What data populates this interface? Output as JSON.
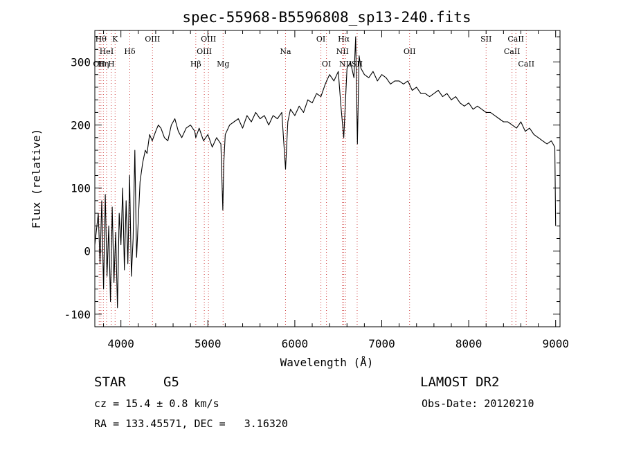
{
  "chart_data": {
    "type": "line",
    "title": "spec-55968-B5596808_sp13-240.fits",
    "xlabel": "Wavelength (Å)",
    "ylabel": "Flux (relative)",
    "xlim": [
      3700,
      9050
    ],
    "ylim": [
      -120,
      350
    ],
    "x_ticks": [
      4000,
      5000,
      6000,
      7000,
      8000,
      9000
    ],
    "y_ticks": [
      -100,
      0,
      100,
      200,
      300
    ],
    "grid": false,
    "series": [
      {
        "color": "#000000",
        "x": [
          3700,
          3740,
          3760,
          3780,
          3800,
          3820,
          3840,
          3860,
          3880,
          3900,
          3920,
          3940,
          3960,
          3980,
          4000,
          4020,
          4040,
          4060,
          4080,
          4100,
          4120,
          4140,
          4160,
          4180,
          4200,
          4220,
          4250,
          4280,
          4300,
          4330,
          4360,
          4400,
          4430,
          4460,
          4500,
          4540,
          4580,
          4620,
          4660,
          4700,
          4750,
          4800,
          4850,
          4861,
          4900,
          4950,
          5000,
          5050,
          5100,
          5150,
          5172,
          5183,
          5200,
          5250,
          5300,
          5350,
          5400,
          5450,
          5500,
          5550,
          5600,
          5650,
          5700,
          5750,
          5800,
          5850,
          5893,
          5920,
          5950,
          6000,
          6050,
          6100,
          6150,
          6200,
          6250,
          6300,
          6350,
          6400,
          6450,
          6500,
          6530,
          6563,
          6600,
          6640,
          6680,
          6700,
          6720,
          6740,
          6760,
          6800,
          6850,
          6900,
          6950,
          7000,
          7050,
          7100,
          7150,
          7200,
          7250,
          7300,
          7350,
          7400,
          7450,
          7500,
          7550,
          7600,
          7650,
          7700,
          7750,
          7800,
          7850,
          7900,
          7950,
          8000,
          8050,
          8100,
          8150,
          8200,
          8250,
          8300,
          8350,
          8400,
          8450,
          8500,
          8550,
          8600,
          8650,
          8700,
          8750,
          8800,
          8850,
          8900,
          8950,
          8990,
          9000
        ],
        "y": [
          10,
          60,
          -20,
          80,
          -60,
          90,
          -40,
          40,
          -80,
          70,
          -50,
          30,
          -90,
          60,
          10,
          100,
          -30,
          80,
          -20,
          120,
          -40,
          20,
          160,
          -10,
          50,
          110,
          140,
          160,
          155,
          185,
          175,
          190,
          200,
          195,
          180,
          175,
          200,
          210,
          190,
          180,
          195,
          200,
          190,
          180,
          195,
          175,
          185,
          165,
          180,
          170,
          65,
          140,
          185,
          200,
          205,
          210,
          195,
          215,
          205,
          220,
          210,
          215,
          200,
          215,
          210,
          220,
          130,
          205,
          225,
          215,
          230,
          220,
          240,
          235,
          250,
          245,
          265,
          280,
          270,
          285,
          230,
          180,
          290,
          300,
          275,
          340,
          170,
          310,
          290,
          280,
          275,
          285,
          270,
          280,
          275,
          265,
          270,
          270,
          265,
          270,
          255,
          260,
          250,
          250,
          245,
          250,
          255,
          245,
          250,
          240,
          245,
          235,
          230,
          235,
          225,
          230,
          225,
          220,
          220,
          215,
          210,
          205,
          205,
          200,
          195,
          205,
          190,
          195,
          185,
          180,
          175,
          170,
          175,
          165,
          40
        ]
      }
    ],
    "line_markers": [
      {
        "wave": 3750,
        "label": "OII",
        "row": 2
      },
      {
        "wave": 3770,
        "label": "Hθ",
        "row": 0
      },
      {
        "wave": 3798,
        "label": "Hη",
        "row": 2
      },
      {
        "wave": 3835,
        "label": "HeI",
        "row": 1
      },
      {
        "wave": 3889,
        "label": "H",
        "row": 2
      },
      {
        "wave": 3933,
        "label": "K",
        "row": 0
      },
      {
        "wave": 4102,
        "label": "Hδ",
        "row": 1
      },
      {
        "wave": 4363,
        "label": "OIII",
        "row": 0
      },
      {
        "wave": 4861,
        "label": "Hβ",
        "row": 2
      },
      {
        "wave": 4959,
        "label": "OIII",
        "row": 1
      },
      {
        "wave": 5007,
        "label": "OIII",
        "row": 0
      },
      {
        "wave": 5175,
        "label": "Mg",
        "row": 2
      },
      {
        "wave": 5893,
        "label": "Na",
        "row": 1
      },
      {
        "wave": 6300,
        "label": "OI",
        "row": 0
      },
      {
        "wave": 6364,
        "label": "OI",
        "row": 2
      },
      {
        "wave": 6548,
        "label": "NII",
        "row": 1
      },
      {
        "wave": 6563,
        "label": "Hα",
        "row": 0
      },
      {
        "wave": 6583,
        "label": "NII",
        "row": 2
      },
      {
        "wave": 6717,
        "label": "SII",
        "row": 2
      },
      {
        "wave": 7320,
        "label": "OII",
        "row": 1
      },
      {
        "wave": 8200,
        "label": "SII",
        "row": 0
      },
      {
        "wave": 8498,
        "label": "CaII",
        "row": 1
      },
      {
        "wave": 8542,
        "label": "CaII",
        "row": 0
      },
      {
        "wave": 8662,
        "label": "CaII",
        "row": 2
      }
    ]
  },
  "info": {
    "class_label": "STAR",
    "subclass": "G5",
    "survey": "LAMOST DR2",
    "redshift": "cz = 15.4 ± 0.8 km/s",
    "obs_date": "Obs-Date: 20120210",
    "coords": "RA = 133.45571, DEC =   3.16320"
  }
}
